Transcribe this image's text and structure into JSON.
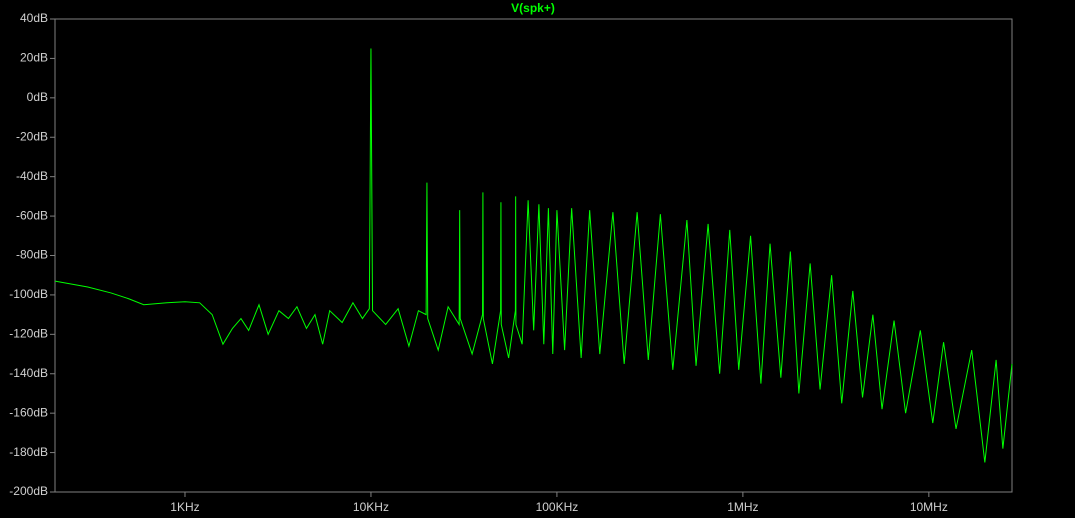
{
  "chart_data": {
    "type": "line",
    "title": "V(spk+)",
    "log_x": true,
    "color": "#00ff00",
    "x": [
      200,
      300,
      400,
      500,
      600,
      800,
      1000,
      1200,
      1400,
      1600,
      1800,
      2000,
      2200,
      2500,
      2800,
      3200,
      3600,
      4000,
      4500,
      5000,
      5500,
      6000,
      7000,
      8000,
      9000,
      9800,
      10000,
      10200,
      12000,
      14000,
      16000,
      18000,
      19800,
      20000,
      20200,
      23000,
      26000,
      29800,
      30000,
      30200,
      35000,
      39800,
      40000,
      40200,
      45000,
      49800,
      50000,
      50200,
      55000,
      59800,
      60000,
      60200,
      65000,
      70000,
      75000,
      80000,
      85000,
      90000,
      95000,
      100000,
      110000,
      120000,
      135000,
      150000,
      170000,
      200000,
      230000,
      270000,
      310000,
      360000,
      420000,
      500000,
      560000,
      650000,
      750000,
      850000,
      950000,
      1100000,
      1250000,
      1400000,
      1600000,
      1800000,
      2000000,
      2300000,
      2600000,
      3000000,
      3400000,
      3900000,
      4400000,
      5000000,
      5600000,
      6500000,
      7500000,
      9000000,
      10500000,
      12000000,
      14000000,
      17000000,
      20000000,
      23000000,
      25000000,
      28000000
    ],
    "values": [
      -93,
      -96,
      -99,
      -102,
      -105,
      -104,
      -103.5,
      -104,
      -110,
      -125,
      -117,
      -112,
      -118,
      -105,
      -120,
      -108,
      -112,
      -106,
      -117,
      -110,
      -125,
      -108,
      -114,
      -104,
      -112,
      -107,
      25,
      -108,
      -115,
      -107,
      -126,
      -108,
      -110,
      -43,
      -112,
      -128,
      -106,
      -115,
      -57,
      -112,
      -130,
      -110,
      -48,
      -112,
      -135,
      -108,
      -53,
      -115,
      -132,
      -108,
      -50,
      -115,
      -125,
      -52,
      -118,
      -54,
      -125,
      -56,
      -130,
      -57,
      -128,
      -56,
      -132,
      -57,
      -130,
      -58,
      -135,
      -58,
      -133,
      -59,
      -138,
      -62,
      -136,
      -64,
      -140,
      -67,
      -138,
      -70,
      -145,
      -74,
      -142,
      -78,
      -150,
      -84,
      -148,
      -90,
      -155,
      -98,
      -152,
      -110,
      -158,
      -113,
      -160,
      -118,
      -165,
      -124,
      -168,
      -128,
      -185,
      -133,
      -178,
      -135
    ],
    "xlim": [
      200,
      28000000
    ],
    "xticks": [
      {
        "value": 1000,
        "label": "1KHz"
      },
      {
        "value": 10000,
        "label": "10KHz"
      },
      {
        "value": 100000,
        "label": "100KHz"
      },
      {
        "value": 1000000,
        "label": "1MHz"
      },
      {
        "value": 10000000,
        "label": "10MHz"
      }
    ],
    "ylim": [
      -200,
      40
    ],
    "yticks": [
      {
        "value": 40,
        "label": "40dB"
      },
      {
        "value": 20,
        "label": "20dB"
      },
      {
        "value": 0,
        "label": "0dB"
      },
      {
        "value": -20,
        "label": "-20dB"
      },
      {
        "value": -40,
        "label": "-40dB"
      },
      {
        "value": -60,
        "label": "-60dB"
      },
      {
        "value": -80,
        "label": "-80dB"
      },
      {
        "value": -100,
        "label": "-100dB"
      },
      {
        "value": -120,
        "label": "-120dB"
      },
      {
        "value": -140,
        "label": "-140dB"
      },
      {
        "value": -160,
        "label": "-160dB"
      },
      {
        "value": -180,
        "label": "-180dB"
      },
      {
        "value": -200,
        "label": "-200dB"
      }
    ]
  }
}
